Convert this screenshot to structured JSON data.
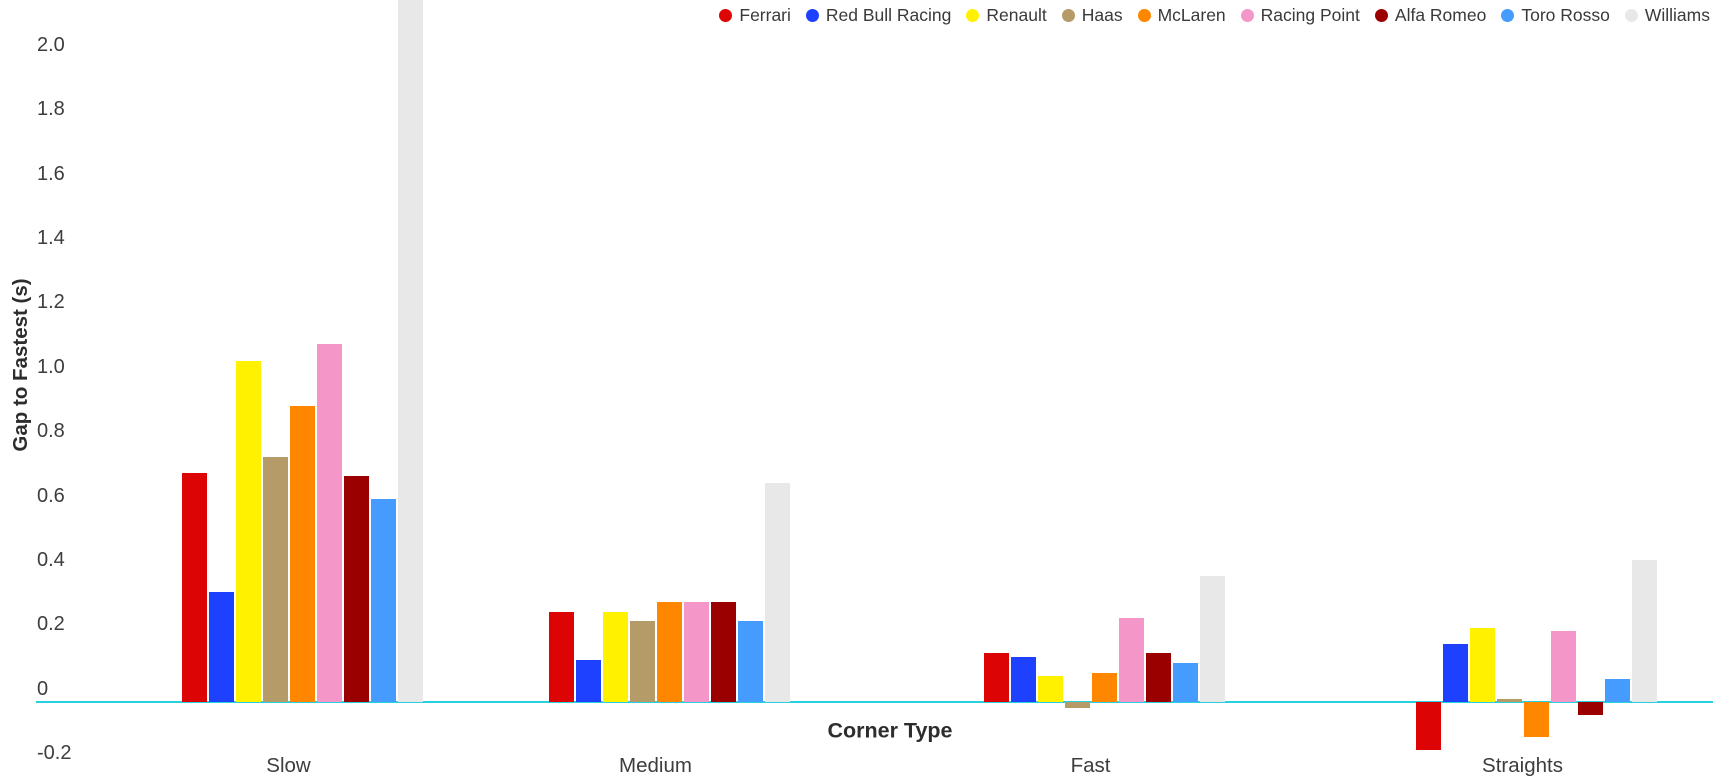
{
  "chart_data": {
    "type": "bar",
    "title": "",
    "xlabel": "Corner Type",
    "ylabel": "Gap to Fastest (s)",
    "categories": [
      "Slow",
      "Medium",
      "Fast",
      "Straights"
    ],
    "series": [
      {
        "name": "Ferrari",
        "color": "#dc0404",
        "values": [
          0.71,
          0.28,
          0.15,
          -0.15
        ]
      },
      {
        "name": "Red Bull Racing",
        "color": "#1e41ff",
        "values": [
          0.34,
          0.13,
          0.14,
          0.18
        ]
      },
      {
        "name": "Renault",
        "color": "#fff100",
        "values": [
          1.06,
          0.28,
          0.08,
          0.23
        ]
      },
      {
        "name": "Haas",
        "color": "#b49b68",
        "values": [
          0.76,
          0.25,
          -0.02,
          0.01
        ]
      },
      {
        "name": "McLaren",
        "color": "#ff8700",
        "values": [
          0.92,
          0.31,
          0.09,
          -0.11
        ]
      },
      {
        "name": "Racing Point",
        "color": "#f596c8",
        "values": [
          1.11,
          0.31,
          0.26,
          0.22
        ]
      },
      {
        "name": "Alfa Romeo",
        "color": "#9b0000",
        "values": [
          0.7,
          0.31,
          0.15,
          -0.04
        ]
      },
      {
        "name": "Toro Rosso",
        "color": "#469bff",
        "values": [
          0.63,
          0.25,
          0.12,
          0.07
        ]
      },
      {
        "name": "Williams",
        "color": "#e8e8e8",
        "values": [
          2.2,
          0.68,
          0.39,
          0.44
        ]
      }
    ],
    "y_tick_labels": [
      "2.0",
      "1.8",
      "1.6",
      "1.4",
      "1.2",
      "1.0",
      "0.8",
      "0.6",
      "0.4",
      "0.2",
      "0",
      "-0.2"
    ],
    "ylim": [
      -0.24,
      2.18
    ],
    "grid": false,
    "legend_position": "top-right",
    "zero_line_color": "#29d0e0"
  }
}
